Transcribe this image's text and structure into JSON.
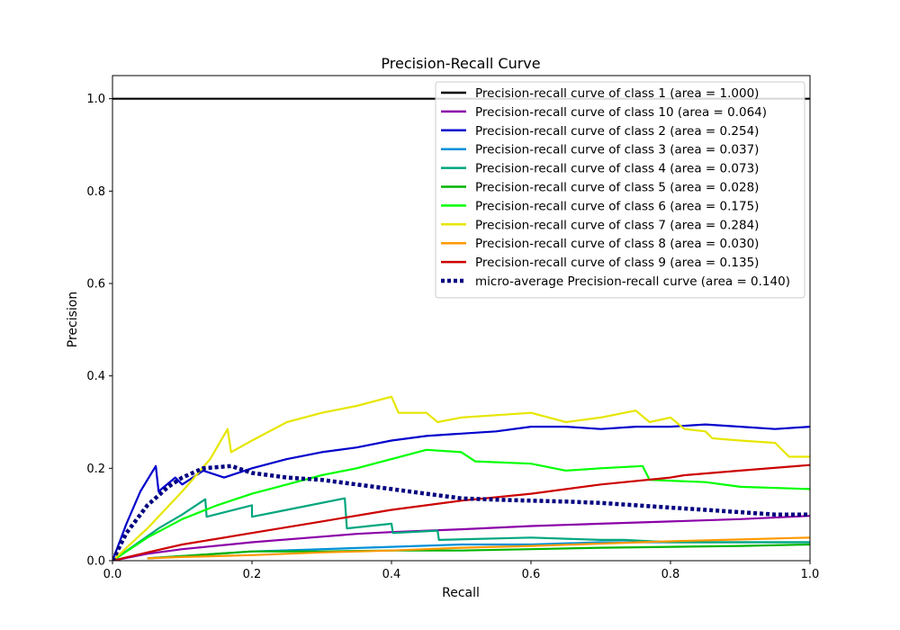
{
  "chart_data": {
    "type": "line",
    "title": "Precision-Recall Curve",
    "xlabel": "Recall",
    "ylabel": "Precision",
    "xlim": [
      0,
      1
    ],
    "ylim": [
      0,
      1.05
    ],
    "x_ticks": [
      "0.0",
      "0.2",
      "0.4",
      "0.6",
      "0.8",
      "1.0"
    ],
    "y_ticks": [
      "0.0",
      "0.2",
      "0.4",
      "0.6",
      "0.8",
      "1.0"
    ],
    "grid": false,
    "legend_position": "top-right",
    "series": [
      {
        "name": "Precision-recall curve of class 1 (area = 1.000)",
        "color": "#000000",
        "style": "solid",
        "points": [
          [
            0,
            1.0
          ],
          [
            1,
            1.0
          ]
        ]
      },
      {
        "name": "Precision-recall curve of class 10 (area = 0.064)",
        "color": "#8b00a8",
        "style": "solid",
        "points": [
          [
            0,
            0
          ],
          [
            0.05,
            0.015
          ],
          [
            0.1,
            0.025
          ],
          [
            0.2,
            0.04
          ],
          [
            0.3,
            0.052
          ],
          [
            0.35,
            0.058
          ],
          [
            0.4,
            0.062
          ],
          [
            0.5,
            0.068
          ],
          [
            0.6,
            0.075
          ],
          [
            0.7,
            0.08
          ],
          [
            0.8,
            0.085
          ],
          [
            0.9,
            0.09
          ],
          [
            1.0,
            0.097
          ]
        ]
      },
      {
        "name": "Precision-recall curve of class 2 (area = 0.254)",
        "color": "#0000cc",
        "style": "solid",
        "points": [
          [
            0,
            0
          ],
          [
            0.02,
            0.08
          ],
          [
            0.04,
            0.15
          ],
          [
            0.062,
            0.205
          ],
          [
            0.066,
            0.15
          ],
          [
            0.09,
            0.18
          ],
          [
            0.1,
            0.165
          ],
          [
            0.13,
            0.195
          ],
          [
            0.16,
            0.18
          ],
          [
            0.2,
            0.2
          ],
          [
            0.25,
            0.22
          ],
          [
            0.3,
            0.235
          ],
          [
            0.35,
            0.245
          ],
          [
            0.4,
            0.26
          ],
          [
            0.45,
            0.27
          ],
          [
            0.5,
            0.275
          ],
          [
            0.55,
            0.28
          ],
          [
            0.6,
            0.29
          ],
          [
            0.65,
            0.29
          ],
          [
            0.7,
            0.285
          ],
          [
            0.75,
            0.29
          ],
          [
            0.8,
            0.29
          ],
          [
            0.85,
            0.295
          ],
          [
            0.9,
            0.29
          ],
          [
            0.95,
            0.285
          ],
          [
            1.0,
            0.29
          ]
        ]
      },
      {
        "name": "Precision-recall curve of class 3 (area = 0.037)",
        "color": "#0090d8",
        "style": "solid",
        "points": [
          [
            0.05,
            0.005
          ],
          [
            0.1,
            0.01
          ],
          [
            0.2,
            0.02
          ],
          [
            0.3,
            0.025
          ],
          [
            0.4,
            0.03
          ],
          [
            0.5,
            0.035
          ],
          [
            0.6,
            0.035
          ],
          [
            0.7,
            0.04
          ],
          [
            0.8,
            0.04
          ],
          [
            1.0,
            0.04
          ]
        ]
      },
      {
        "name": "Precision-recall curve of class 4 (area = 0.073)",
        "color": "#00a67e",
        "style": "solid",
        "points": [
          [
            0,
            0
          ],
          [
            0.066,
            0.07
          ],
          [
            0.1,
            0.1
          ],
          [
            0.133,
            0.133
          ],
          [
            0.135,
            0.095
          ],
          [
            0.2,
            0.12
          ],
          [
            0.2,
            0.095
          ],
          [
            0.25,
            0.11
          ],
          [
            0.333,
            0.135
          ],
          [
            0.336,
            0.07
          ],
          [
            0.4,
            0.08
          ],
          [
            0.402,
            0.06
          ],
          [
            0.466,
            0.065
          ],
          [
            0.468,
            0.045
          ],
          [
            0.6,
            0.05
          ],
          [
            0.7,
            0.045
          ],
          [
            0.733,
            0.045
          ],
          [
            0.8,
            0.04
          ],
          [
            1.0,
            0.04
          ]
        ]
      },
      {
        "name": "Precision-recall curve of class 5 (area = 0.028)",
        "color": "#00b400",
        "style": "solid",
        "points": [
          [
            0.05,
            0.005
          ],
          [
            0.1,
            0.01
          ],
          [
            0.2,
            0.02
          ],
          [
            0.3,
            0.02
          ],
          [
            0.4,
            0.022
          ],
          [
            0.5,
            0.022
          ],
          [
            0.6,
            0.025
          ],
          [
            0.7,
            0.028
          ],
          [
            0.8,
            0.03
          ],
          [
            0.9,
            0.032
          ],
          [
            1.0,
            0.035
          ]
        ]
      },
      {
        "name": "Precision-recall curve of class 6 (area = 0.175)",
        "color": "#00ff00",
        "style": "solid",
        "points": [
          [
            0,
            0
          ],
          [
            0.05,
            0.05
          ],
          [
            0.1,
            0.09
          ],
          [
            0.15,
            0.12
          ],
          [
            0.2,
            0.145
          ],
          [
            0.25,
            0.165
          ],
          [
            0.3,
            0.185
          ],
          [
            0.35,
            0.2
          ],
          [
            0.4,
            0.22
          ],
          [
            0.45,
            0.24
          ],
          [
            0.5,
            0.235
          ],
          [
            0.52,
            0.215
          ],
          [
            0.6,
            0.21
          ],
          [
            0.65,
            0.195
          ],
          [
            0.7,
            0.2
          ],
          [
            0.76,
            0.205
          ],
          [
            0.77,
            0.175
          ],
          [
            0.85,
            0.17
          ],
          [
            0.9,
            0.16
          ],
          [
            1.0,
            0.155
          ]
        ]
      },
      {
        "name": "Precision-recall curve of class 7 (area = 0.284)",
        "color": "#e6e600",
        "style": "solid",
        "points": [
          [
            0,
            0
          ],
          [
            0.05,
            0.07
          ],
          [
            0.1,
            0.15
          ],
          [
            0.14,
            0.22
          ],
          [
            0.165,
            0.285
          ],
          [
            0.17,
            0.235
          ],
          [
            0.2,
            0.26
          ],
          [
            0.25,
            0.3
          ],
          [
            0.3,
            0.32
          ],
          [
            0.35,
            0.335
          ],
          [
            0.4,
            0.355
          ],
          [
            0.41,
            0.32
          ],
          [
            0.45,
            0.32
          ],
          [
            0.466,
            0.3
          ],
          [
            0.5,
            0.31
          ],
          [
            0.55,
            0.315
          ],
          [
            0.6,
            0.32
          ],
          [
            0.65,
            0.3
          ],
          [
            0.7,
            0.31
          ],
          [
            0.75,
            0.325
          ],
          [
            0.77,
            0.3
          ],
          [
            0.8,
            0.31
          ],
          [
            0.82,
            0.285
          ],
          [
            0.85,
            0.28
          ],
          [
            0.86,
            0.265
          ],
          [
            0.9,
            0.26
          ],
          [
            0.95,
            0.255
          ],
          [
            0.97,
            0.225
          ],
          [
            1.0,
            0.225
          ]
        ]
      },
      {
        "name": "Precision-recall curve of class 8 (area = 0.030)",
        "color": "#ff9900",
        "style": "solid",
        "points": [
          [
            0.05,
            0.005
          ],
          [
            0.1,
            0.008
          ],
          [
            0.2,
            0.012
          ],
          [
            0.3,
            0.018
          ],
          [
            0.4,
            0.022
          ],
          [
            0.5,
            0.028
          ],
          [
            0.6,
            0.032
          ],
          [
            0.7,
            0.037
          ],
          [
            0.8,
            0.042
          ],
          [
            0.9,
            0.046
          ],
          [
            1.0,
            0.05
          ]
        ]
      },
      {
        "name": "Precision-recall curve of class 9 (area = 0.135)",
        "color": "#cc0000",
        "style": "solid",
        "points": [
          [
            0,
            0
          ],
          [
            0.05,
            0.018
          ],
          [
            0.1,
            0.035
          ],
          [
            0.2,
            0.06
          ],
          [
            0.3,
            0.085
          ],
          [
            0.4,
            0.11
          ],
          [
            0.5,
            0.13
          ],
          [
            0.6,
            0.145
          ],
          [
            0.7,
            0.165
          ],
          [
            0.8,
            0.18
          ],
          [
            0.82,
            0.185
          ],
          [
            0.9,
            0.195
          ],
          [
            1.0,
            0.207
          ]
        ]
      },
      {
        "name": "micro-average Precision-recall curve (area = 0.140)",
        "color": "#000080",
        "style": "dotted",
        "points": [
          [
            0,
            0
          ],
          [
            0.02,
            0.06
          ],
          [
            0.05,
            0.12
          ],
          [
            0.08,
            0.16
          ],
          [
            0.1,
            0.18
          ],
          [
            0.13,
            0.2
          ],
          [
            0.17,
            0.205
          ],
          [
            0.2,
            0.19
          ],
          [
            0.25,
            0.18
          ],
          [
            0.3,
            0.175
          ],
          [
            0.35,
            0.165
          ],
          [
            0.4,
            0.155
          ],
          [
            0.45,
            0.145
          ],
          [
            0.5,
            0.135
          ],
          [
            0.55,
            0.132
          ],
          [
            0.6,
            0.13
          ],
          [
            0.65,
            0.128
          ],
          [
            0.7,
            0.125
          ],
          [
            0.75,
            0.12
          ],
          [
            0.8,
            0.115
          ],
          [
            0.85,
            0.11
          ],
          [
            0.9,
            0.105
          ],
          [
            0.95,
            0.1
          ],
          [
            1.0,
            0.1
          ]
        ]
      }
    ]
  }
}
